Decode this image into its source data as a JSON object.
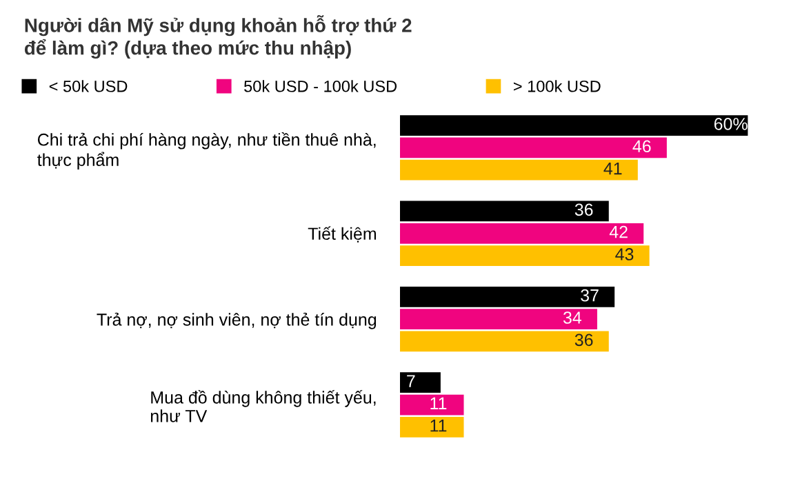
{
  "chart_data": {
    "type": "bar",
    "orientation": "horizontal",
    "title": "Người dân Mỹ sử dụng khoản hỗ trợ thứ 2\nđể làm gì? (dựa theo mức thu nhập)",
    "categories": [
      "Chi trả chi phí hàng ngày, như tiền thuê nhà,\nthực phẩm",
      "Tiết kiệm",
      "Trả nợ, nợ sinh viên, nợ thẻ tín dụng",
      "Mua đồ dùng không thiết yếu,\nnhư TV"
    ],
    "series": [
      {
        "name": "< 50k USD",
        "color": "#000000",
        "values": [
          60,
          36,
          37,
          7
        ],
        "value_labels": [
          "60%",
          "36",
          "37",
          "7"
        ]
      },
      {
        "name": "50k USD - 100k USD",
        "color": "#f0047f",
        "values": [
          46,
          42,
          34,
          11
        ],
        "value_labels": [
          "46",
          "42",
          "34",
          "11"
        ]
      },
      {
        "name": "> 100k USD",
        "color": "#ffc000",
        "values": [
          41,
          43,
          36,
          11
        ],
        "value_labels": [
          "41",
          "43",
          "36",
          "11"
        ]
      }
    ],
    "legend": "top",
    "grid": false,
    "tick_labels": "y"
  }
}
